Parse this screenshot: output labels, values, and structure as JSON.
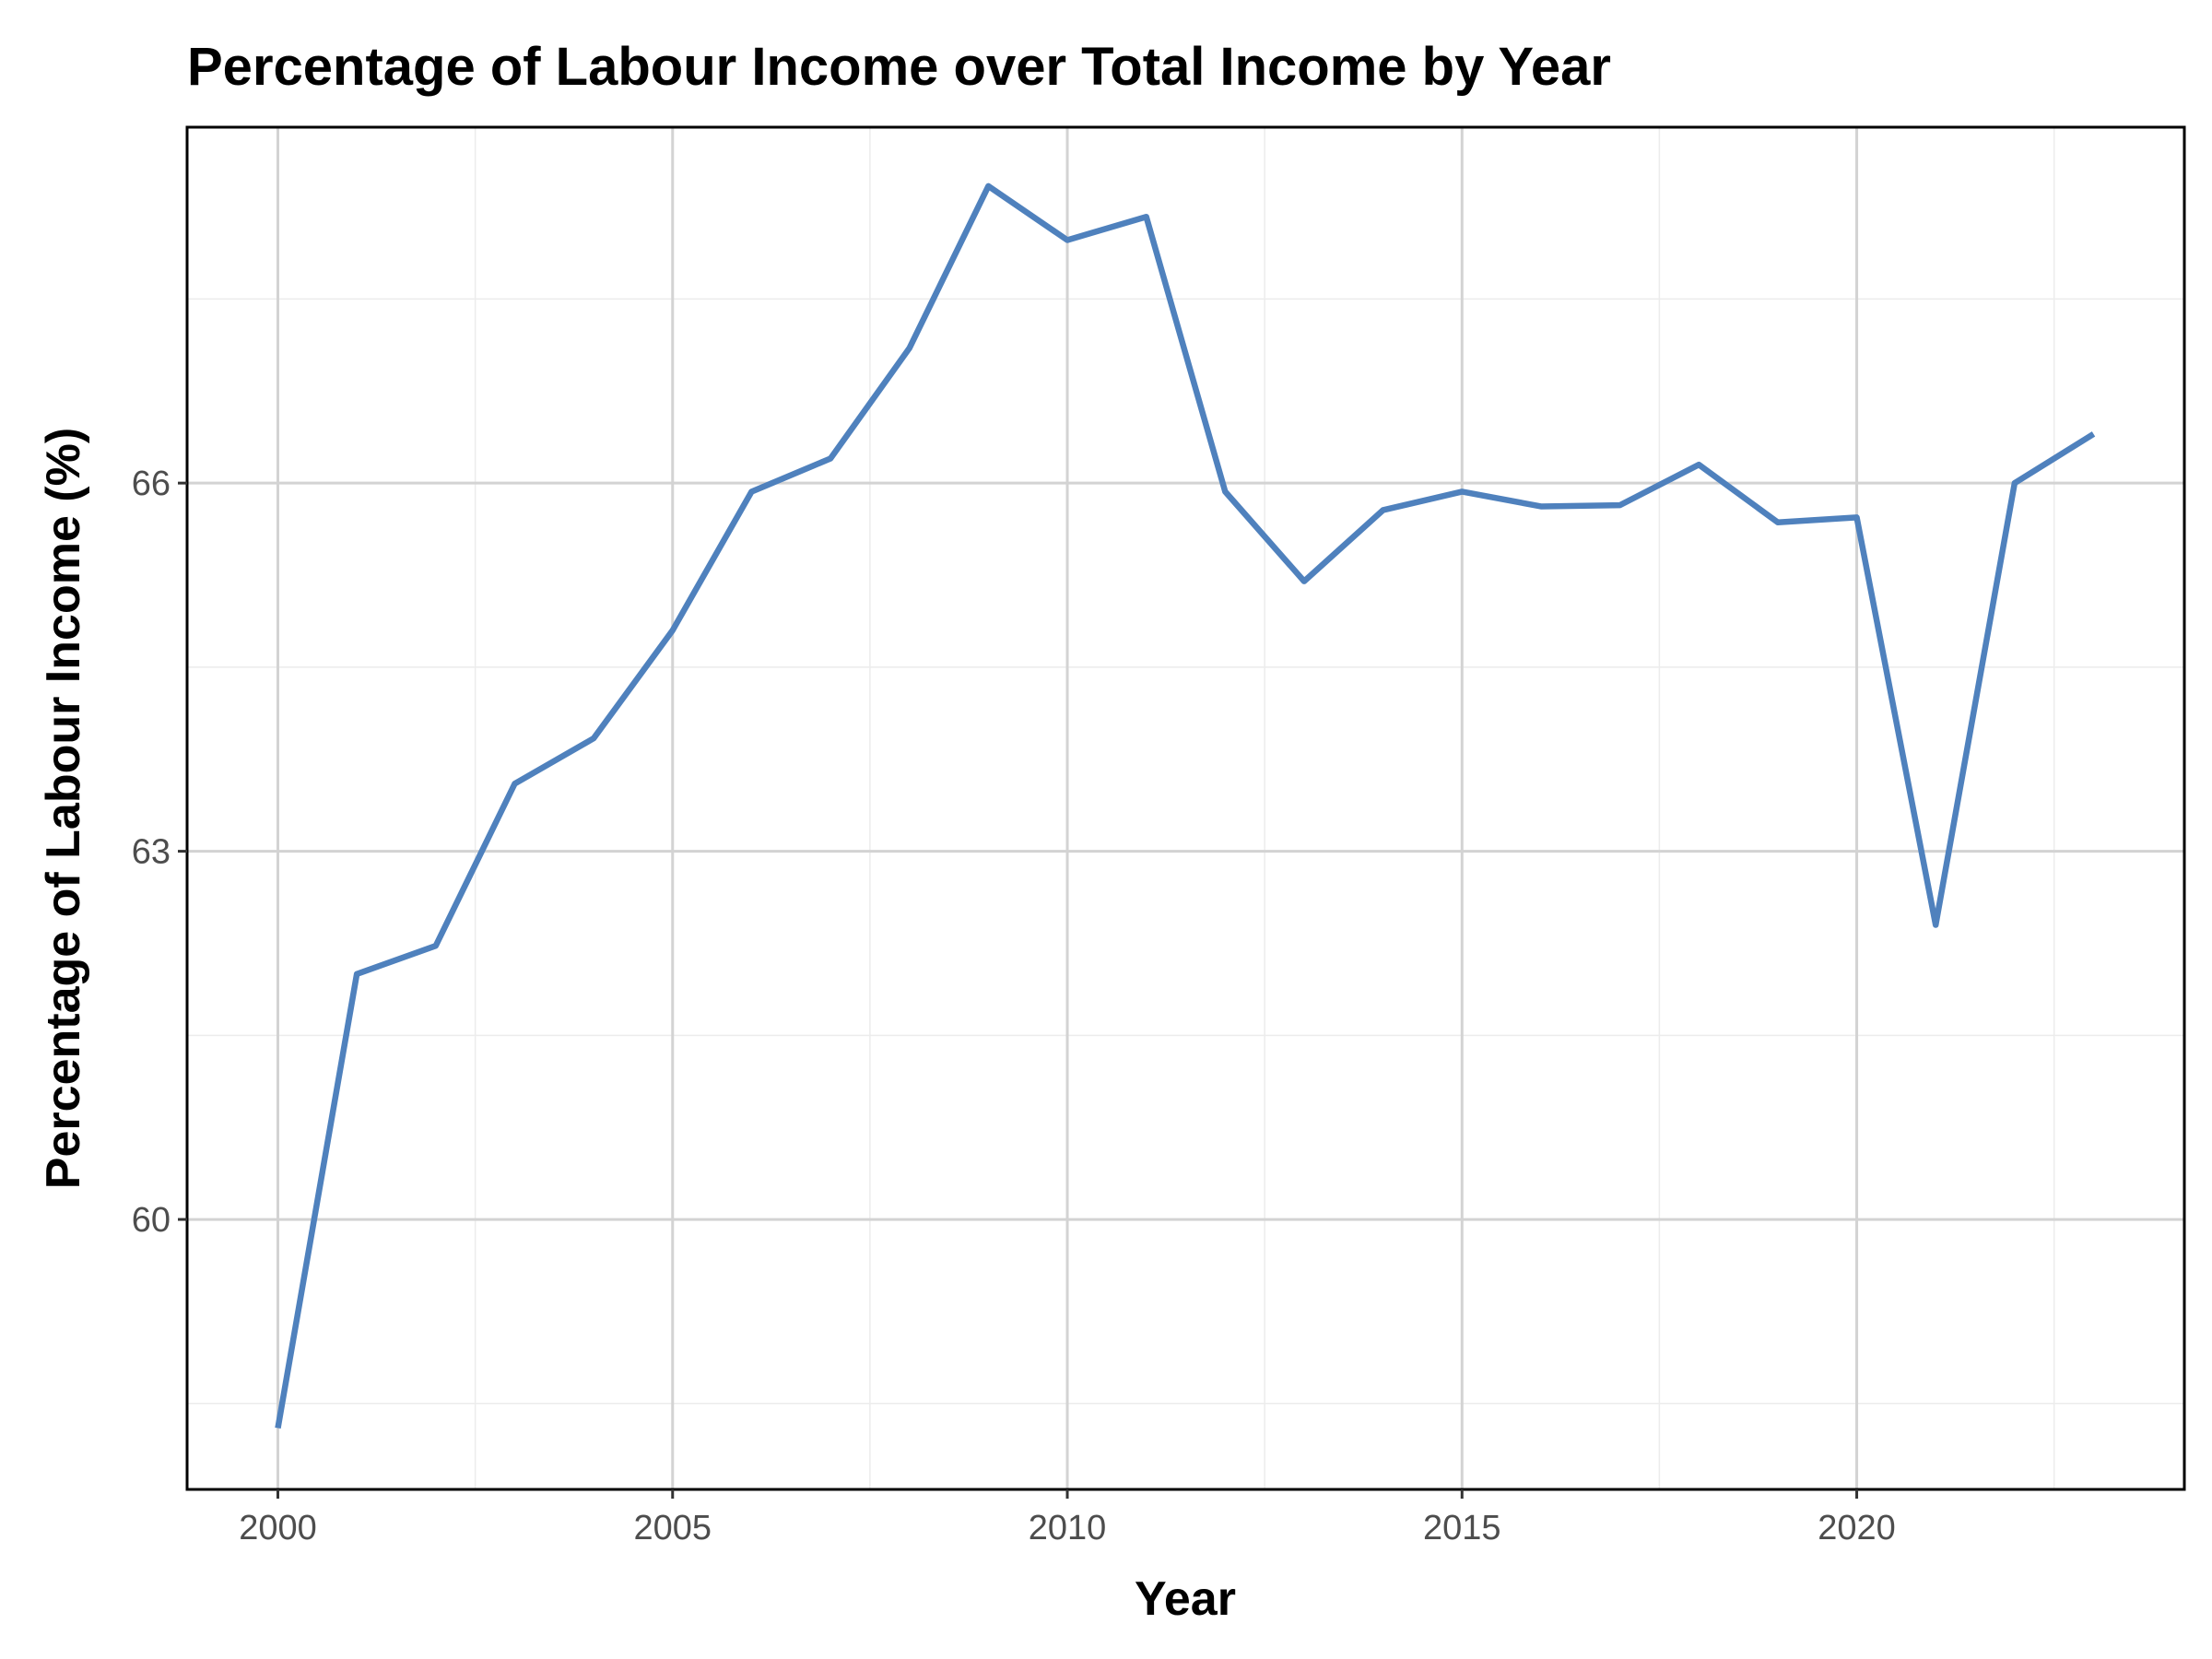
{
  "chart_data": {
    "type": "line",
    "title": "Percentage of Labour Income over Total Income by Year",
    "xlabel": "Year",
    "ylabel": "Percentage of Labour Income (%)",
    "x": [
      2000,
      2001,
      2002,
      2003,
      2004,
      2005,
      2006,
      2007,
      2008,
      2009,
      2010,
      2011,
      2012,
      2013,
      2014,
      2015,
      2016,
      2017,
      2018,
      2019,
      2020,
      2021,
      2022,
      2023
    ],
    "series": [
      {
        "color": "#4f81bd",
        "values": [
          58.3,
          62.0,
          62.23,
          63.55,
          63.92,
          64.8,
          65.93,
          66.2,
          67.1,
          68.42,
          67.98,
          68.17,
          65.93,
          65.2,
          65.78,
          65.93,
          65.81,
          65.82,
          66.15,
          65.68,
          65.72,
          62.4,
          66.0,
          66.4
        ]
      }
    ],
    "xlim": [
      1998.85,
      2024.15
    ],
    "ylim": [
      57.8,
      68.9
    ],
    "x_ticks": [
      2000,
      2005,
      2010,
      2015,
      2020
    ],
    "x_tick_labels": [
      "2000",
      "2005",
      "2010",
      "2015",
      "2020"
    ],
    "y_ticks": [
      60,
      63,
      66
    ],
    "y_tick_labels": [
      "60",
      "63",
      "66"
    ],
    "x_minor_ticks": [
      2002.5,
      2007.5,
      2012.5,
      2017.5,
      2022.5
    ],
    "y_minor_ticks": [
      58.5,
      61.5,
      64.5,
      67.5
    ],
    "grid": true,
    "legend": "none"
  }
}
